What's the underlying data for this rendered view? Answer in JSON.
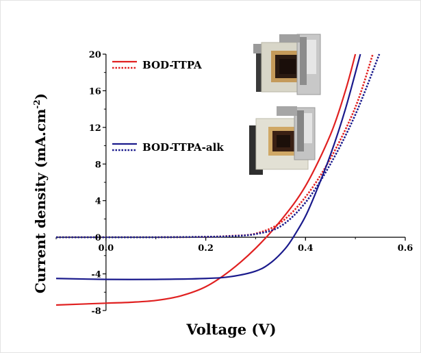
{
  "chart_data": {
    "type": "line",
    "xlabel": "Voltage (V)",
    "ylabel": "Current density (mA.cm",
    "ylabel_sup": "-2",
    "ylabel_close": ")",
    "xlim": [
      -0.1,
      0.6
    ],
    "ylim": [
      -8,
      20
    ],
    "x_ticks": [
      0.0,
      0.2,
      0.4,
      0.6
    ],
    "x_tick_labels": [
      "0.0",
      "0.2",
      "0.4",
      "0.6"
    ],
    "y_ticks": [
      -8,
      -4,
      0,
      4,
      8,
      12,
      16,
      20
    ],
    "y_tick_labels": [
      "-8",
      "-4",
      "0",
      "4",
      "8",
      "12",
      "16",
      "20"
    ],
    "legend": [
      {
        "label": "BOD-TTPA",
        "color": "#e02020",
        "styles": [
          "solid",
          "dotted"
        ]
      },
      {
        "label": "BOD-TTPA-alk",
        "color": "#1a1a8c",
        "styles": [
          "solid",
          "dotted"
        ]
      }
    ],
    "series": [
      {
        "group": "BOD-TTPA",
        "style": "solid",
        "color": "#e02020",
        "x": [
          -0.1,
          0.0,
          0.05,
          0.1,
          0.15,
          0.2,
          0.25,
          0.3,
          0.35,
          0.4,
          0.45,
          0.48,
          0.5
        ],
        "y": [
          -7.4,
          -7.2,
          -7.1,
          -6.9,
          -6.4,
          -5.4,
          -3.6,
          -1.2,
          1.8,
          5.6,
          11.2,
          16.0,
          20.0
        ]
      },
      {
        "group": "BOD-TTPA",
        "style": "dotted",
        "color": "#e02020",
        "x": [
          -0.1,
          0.0,
          0.1,
          0.2,
          0.25,
          0.3,
          0.35,
          0.4,
          0.45,
          0.5,
          0.535
        ],
        "y": [
          0.0,
          0.0,
          0.0,
          0.05,
          0.15,
          0.4,
          1.6,
          4.4,
          8.6,
          14.2,
          20.0
        ]
      },
      {
        "group": "BOD-TTPA-alk",
        "style": "solid",
        "color": "#1a1a8c",
        "x": [
          -0.1,
          0.0,
          0.1,
          0.2,
          0.25,
          0.3,
          0.33,
          0.36,
          0.38,
          0.4,
          0.42,
          0.45,
          0.48,
          0.51
        ],
        "y": [
          -4.5,
          -4.6,
          -4.6,
          -4.5,
          -4.3,
          -3.7,
          -2.8,
          -1.2,
          0.4,
          2.3,
          4.8,
          9.0,
          14.0,
          20.0
        ]
      },
      {
        "group": "BOD-TTPA-alk",
        "style": "dotted",
        "color": "#1a1a8c",
        "x": [
          -0.1,
          0.0,
          0.1,
          0.2,
          0.25,
          0.3,
          0.35,
          0.4,
          0.45,
          0.5,
          0.548
        ],
        "y": [
          0.0,
          0.0,
          0.0,
          0.05,
          0.12,
          0.35,
          1.2,
          3.8,
          8.0,
          13.4,
          20.0
        ]
      }
    ]
  },
  "device_photo_top": {
    "name": "device-photo-icon"
  },
  "device_photo_bottom": {
    "name": "device-photo-icon"
  }
}
